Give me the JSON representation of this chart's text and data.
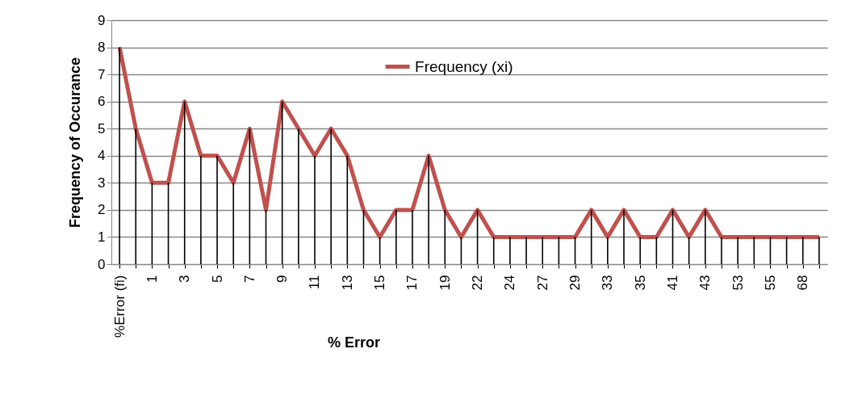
{
  "chart_data": {
    "type": "line",
    "xlabel": "% Error",
    "ylabel": "Frequency of Occurance",
    "categories": [
      "%Error (fi)",
      null,
      "1",
      null,
      "3",
      null,
      "5",
      null,
      "7",
      null,
      "9",
      null,
      "11",
      null,
      "13",
      null,
      "15",
      null,
      "17",
      null,
      "19",
      null,
      "22",
      null,
      "24",
      null,
      "27",
      null,
      "29",
      null,
      "33",
      null,
      "35",
      null,
      "41",
      null,
      "43",
      null,
      "53",
      null,
      "55",
      null,
      "68",
      null
    ],
    "series": [
      {
        "type": "bar",
        "color": "#000000",
        "values": [
          8,
          5,
          3,
          3,
          6,
          4,
          4,
          3,
          5,
          2,
          6,
          5,
          4,
          5,
          4,
          2,
          1,
          2,
          2,
          4,
          2,
          1,
          2,
          1,
          1,
          1,
          1,
          1,
          1,
          2,
          1,
          2,
          1,
          1,
          2,
          1,
          2,
          1,
          1,
          1,
          1,
          1,
          1,
          1
        ]
      },
      {
        "name": "Frequency (xi)",
        "color": "#c0504d",
        "values": [
          8,
          5,
          3,
          3,
          6,
          4,
          4,
          3,
          5,
          2,
          6,
          5,
          4,
          5,
          4,
          2,
          1,
          2,
          2,
          4,
          2,
          1,
          2,
          1,
          1,
          1,
          1,
          1,
          1,
          2,
          1,
          2,
          1,
          1,
          2,
          1,
          2,
          1,
          1,
          1,
          1,
          1,
          1,
          1
        ]
      }
    ],
    "ylim": [
      0,
      9
    ],
    "yticks": [
      0,
      1,
      2,
      3,
      4,
      5,
      6,
      7,
      8,
      9
    ],
    "grid": "y",
    "legend": "top",
    "marker": "none",
    "line_style": "solid"
  }
}
